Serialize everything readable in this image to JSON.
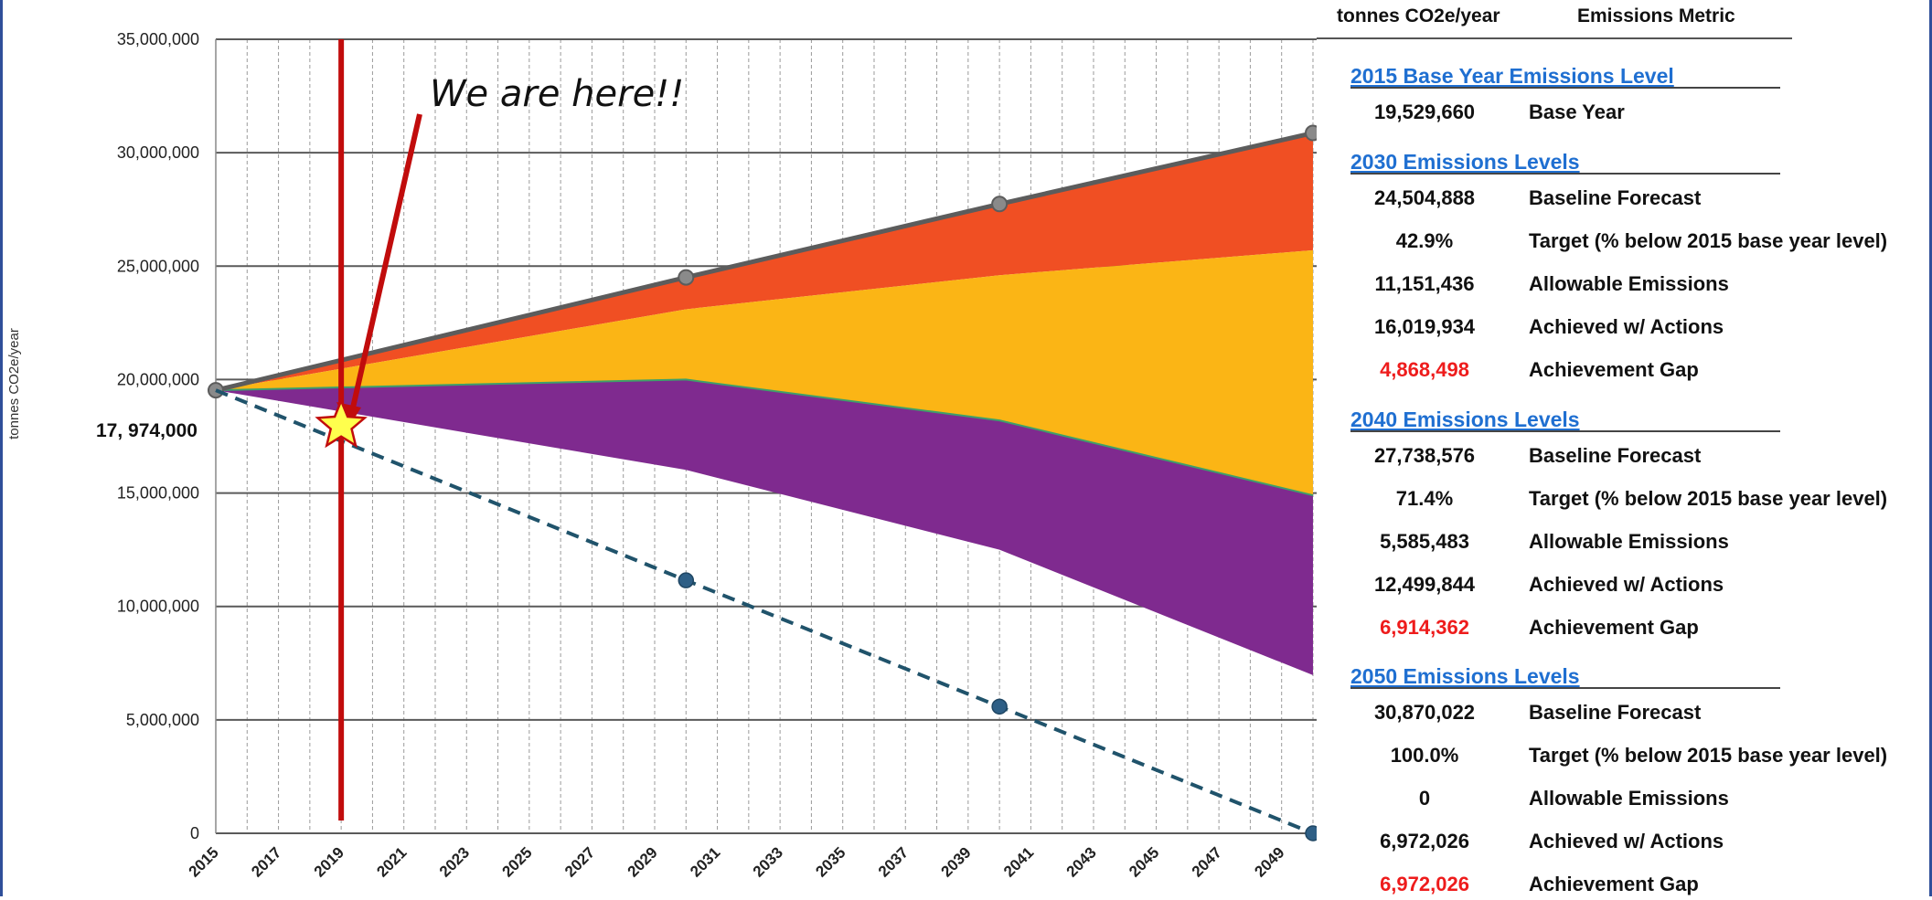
{
  "chart_data": {
    "type": "area",
    "ylabel": "tonnes CO2e/year",
    "ylim": [
      0,
      35000000
    ],
    "xlim": [
      2015,
      2050
    ],
    "y_ticks": [
      0,
      5000000,
      10000000,
      15000000,
      20000000,
      25000000,
      30000000,
      35000000
    ],
    "y_tick_labels": [
      "0",
      "5,000,000",
      "10,000,000",
      "15,000,000",
      "20,000,000",
      "25,000,000",
      "30,000,000",
      "35,000,000"
    ],
    "x_ticks": [
      "2015",
      "2017",
      "2019",
      "2021",
      "2023",
      "2025",
      "2027",
      "2029",
      "2031",
      "2033",
      "2035",
      "2037",
      "2039",
      "2041",
      "2043",
      "2045",
      "2047",
      "2049"
    ],
    "grid": true,
    "x": [
      2015,
      2030,
      2040,
      2050
    ],
    "series": [
      {
        "name": "Baseline Forecast",
        "values": [
          19529660,
          24504888,
          27738576,
          30870022
        ],
        "color": "#f04f23"
      },
      {
        "values": [
          19529660,
          23100000,
          24600000,
          25700000
        ],
        "color": "#fbb515"
      },
      {
        "name": "Achieved w/ Actions",
        "values": [
          19529660,
          20000000,
          18200000,
          14900000
        ],
        "color": "#7f2a8f"
      },
      {
        "values": [
          19529660,
          16019934,
          12499844,
          6972026
        ],
        "color": "#ffffff"
      },
      {
        "name": "Allowable Emissions",
        "values": [
          19529660,
          11151436,
          5585483,
          0
        ],
        "color": "#20536b"
      }
    ],
    "marker": {
      "year": 2019,
      "value": 17974000,
      "label": "17, 974,000",
      "annotation": "We are here!!",
      "line_color": "#c10c0c",
      "star_color": "#ffff4d"
    }
  },
  "table": {
    "header_value": "tonnes CO2e/year",
    "header_metric": "Emissions Metric",
    "sections": [
      {
        "title": "2015 Base Year Emissions Level",
        "rows": [
          {
            "value": "19,529,660",
            "metric": "Base Year",
            "gap": false
          }
        ]
      },
      {
        "title": "2030 Emissions Levels",
        "rows": [
          {
            "value": "24,504,888",
            "metric": "Baseline Forecast",
            "gap": false
          },
          {
            "value": "42.9%",
            "metric": "Target (% below 2015 base year level)",
            "gap": false
          },
          {
            "value": "11,151,436",
            "metric": "Allowable Emissions",
            "gap": false
          },
          {
            "value": "16,019,934",
            "metric": "Achieved w/ Actions",
            "gap": false
          },
          {
            "value": "4,868,498",
            "metric": "Achievement Gap",
            "gap": true
          }
        ]
      },
      {
        "title": "2040 Emissions Levels",
        "rows": [
          {
            "value": "27,738,576",
            "metric": "Baseline Forecast",
            "gap": false
          },
          {
            "value": "71.4%",
            "metric": "Target (% below 2015 base year level)",
            "gap": false
          },
          {
            "value": "5,585,483",
            "metric": "Allowable Emissions",
            "gap": false
          },
          {
            "value": "12,499,844",
            "metric": "Achieved w/ Actions",
            "gap": false
          },
          {
            "value": "6,914,362",
            "metric": "Achievement Gap",
            "gap": true
          }
        ]
      },
      {
        "title": "2050 Emissions Levels",
        "rows": [
          {
            "value": "30,870,022",
            "metric": "Baseline Forecast",
            "gap": false
          },
          {
            "value": "100.0%",
            "metric": "Target (% below 2015 base year level)",
            "gap": false
          },
          {
            "value": "0",
            "metric": "Allowable Emissions",
            "gap": false
          },
          {
            "value": "6,972,026",
            "metric": "Achieved w/ Actions",
            "gap": false
          },
          {
            "value": "6,972,026",
            "metric": "Achievement Gap",
            "gap": true
          }
        ]
      }
    ]
  }
}
